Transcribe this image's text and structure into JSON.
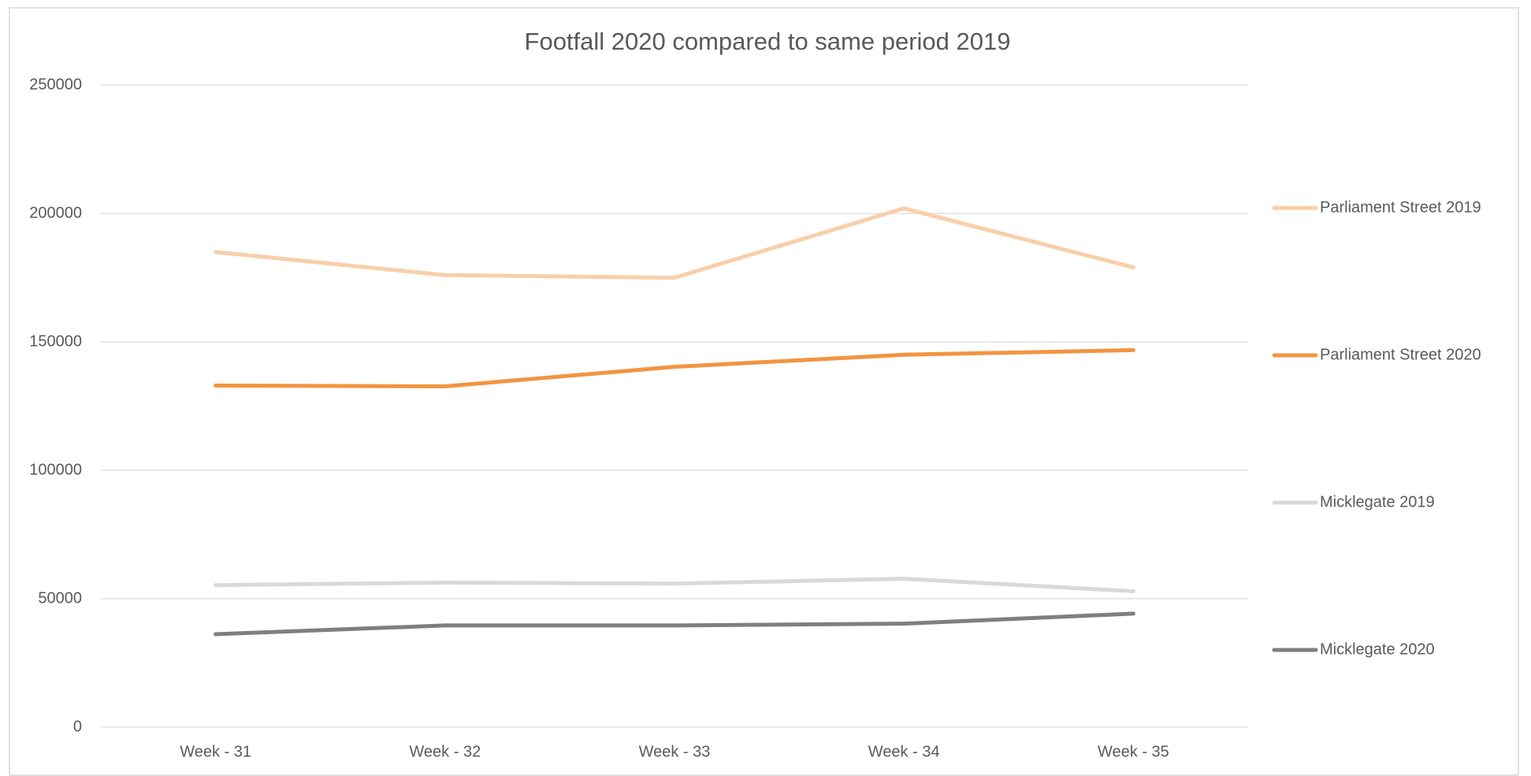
{
  "chart_data": {
    "type": "line",
    "title": "Footfall 2020 compared to same period 2019",
    "categories": [
      "Week - 31",
      "Week - 32",
      "Week - 33",
      "Week - 34",
      "Week - 35"
    ],
    "series": [
      {
        "name": "Parliament Street 2019",
        "color": "#f8cfa9",
        "values": [
          185000,
          176000,
          175000,
          202000,
          179000
        ]
      },
      {
        "name": "Parliament Street 2020",
        "color": "#f39440",
        "values": [
          133000,
          132700,
          140300,
          145000,
          146800
        ]
      },
      {
        "name": "Micklegate 2019",
        "color": "#d9d9d9",
        "values": [
          55300,
          56300,
          55900,
          57800,
          52900
        ]
      },
      {
        "name": "Micklegate 2020",
        "color": "#7f7f7f",
        "values": [
          36200,
          39600,
          39600,
          40300,
          44200
        ]
      }
    ],
    "ylim": [
      0,
      250000
    ],
    "yticks": [
      0,
      50000,
      100000,
      150000,
      200000,
      250000
    ],
    "grid": true,
    "legend": "right"
  }
}
